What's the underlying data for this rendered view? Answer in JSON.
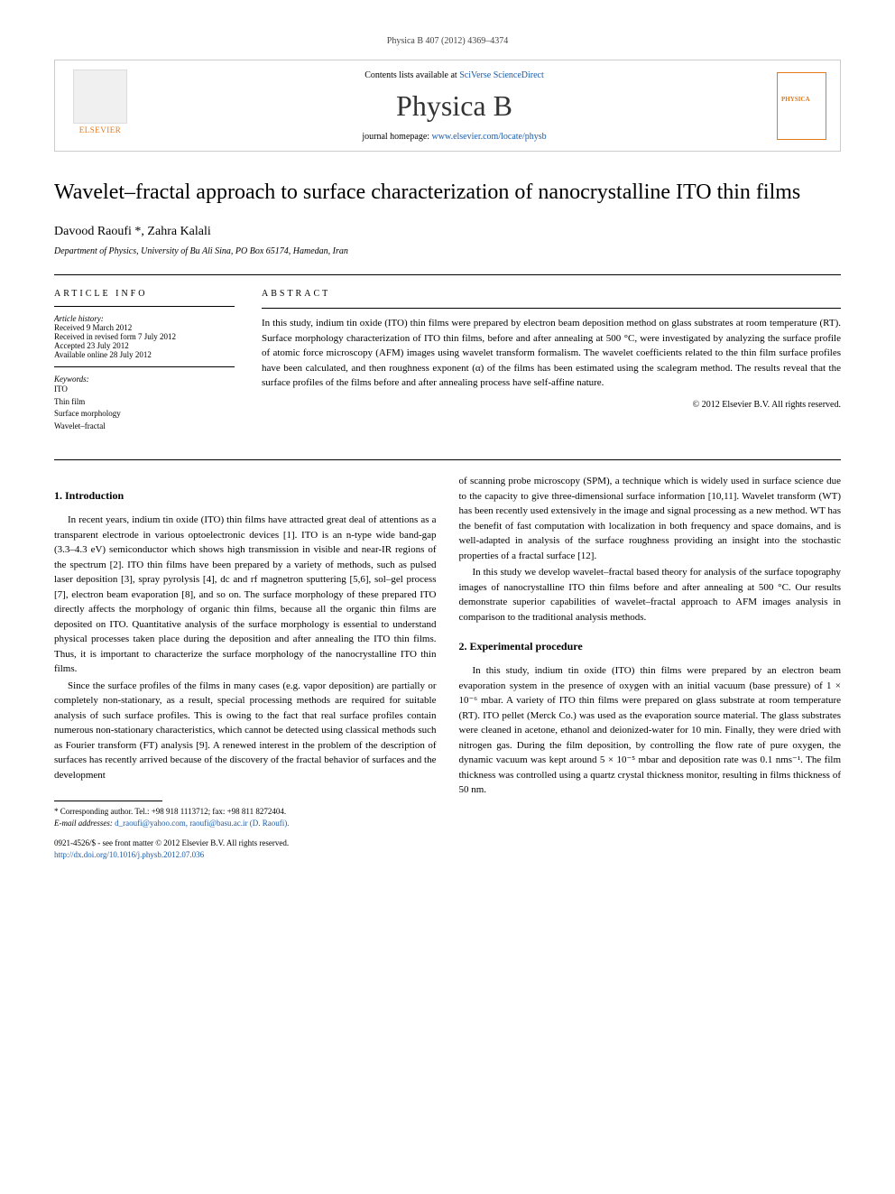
{
  "header": {
    "running_head": "Physica B 407 (2012) 4369–4374",
    "contents_prefix": "Contents lists available at ",
    "contents_link": "SciVerse ScienceDirect",
    "journal": "Physica B",
    "homepage_prefix": "journal homepage: ",
    "homepage_url": "www.elsevier.com/locate/physb",
    "publisher": "ELSEVIER"
  },
  "article": {
    "title": "Wavelet–fractal approach to surface characterization of nanocrystalline ITO thin films",
    "authors": "Davood Raoufi *, Zahra Kalali",
    "affiliation": "Department of Physics, University of Bu Ali Sina, PO Box 65174, Hamedan, Iran"
  },
  "info": {
    "heading": "article info",
    "history_label": "Article history:",
    "received": "Received 9 March 2012",
    "revised": "Received in revised form 7 July 2012",
    "accepted": "Accepted 23 July 2012",
    "online": "Available online 28 July 2012",
    "keywords_label": "Keywords:",
    "keywords": [
      "ITO",
      "Thin film",
      "Surface morphology",
      "Wavelet–fractal"
    ]
  },
  "abstract": {
    "heading": "abstract",
    "text": "In this study, indium tin oxide (ITO) thin films were prepared by electron beam deposition method on glass substrates at room temperature (RT). Surface morphology characterization of ITO thin films, before and after annealing at 500 °C, were investigated by analyzing the surface profile of atomic force microscopy (AFM) images using wavelet transform formalism. The wavelet coefficients related to the thin film surface profiles have been calculated, and then roughness exponent (α) of the films has been estimated using the scalegram method. The results reveal that the surface profiles of the films before and after annealing process have self-affine nature.",
    "copyright": "© 2012 Elsevier B.V. All rights reserved."
  },
  "sections": {
    "intro_heading": "1. Introduction",
    "intro_p1": "In recent years, indium tin oxide (ITO) thin films have attracted great deal of attentions as a transparent electrode in various optoelectronic devices [1]. ITO is an n-type wide band-gap (3.3–4.3 eV) semiconductor which shows high transmission in visible and near-IR regions of the spectrum [2]. ITO thin films have been prepared by a variety of methods, such as pulsed laser deposition [3], spray pyrolysis [4], dc and rf magnetron sputtering [5,6], sol–gel process [7], electron beam evaporation [8], and so on. The surface morphology of these prepared ITO directly affects the morphology of organic thin films, because all the organic thin films are deposited on ITO. Quantitative analysis of the surface morphology is essential to understand physical processes taken place during the deposition and after annealing the ITO thin films. Thus, it is important to characterize the surface morphology of the nanocrystalline ITO thin films.",
    "intro_p2": "Since the surface profiles of the films in many cases (e.g. vapor deposition) are partially or completely non-stationary, as a result, special processing methods are required for suitable analysis of such surface profiles. This is owing to the fact that real surface profiles contain numerous non-stationary characteristics, which cannot be detected using classical methods such as Fourier transform (FT) analysis [9]. A renewed interest in the problem of the description of surfaces has recently arrived because of the discovery of the fractal behavior of surfaces and the development",
    "intro_p3": "of scanning probe microscopy (SPM), a technique which is widely used in surface science due to the capacity to give three-dimensional surface information [10,11]. Wavelet transform (WT) has been recently used extensively in the image and signal processing as a new method. WT has the benefit of fast computation with localization in both frequency and space domains, and is well-adapted in analysis of the surface roughness providing an insight into the stochastic properties of a fractal surface [12].",
    "intro_p4": "In this study we develop wavelet–fractal based theory for analysis of the surface topography images of nanocrystalline ITO thin films before and after annealing at 500 °C. Our results demonstrate superior capabilities of wavelet–fractal approach to AFM images analysis in comparison to the traditional analysis methods.",
    "exp_heading": "2. Experimental procedure",
    "exp_p1": "In this study, indium tin oxide (ITO) thin films were prepared by an electron beam evaporation system in the presence of oxygen with an initial vacuum (base pressure) of 1 × 10⁻⁶ mbar. A variety of ITO thin films were prepared on glass substrate at room temperature (RT). ITO pellet (Merck Co.) was used as the evaporation source material. The glass substrates were cleaned in acetone, ethanol and deionized-water for 10 min. Finally, they were dried with nitrogen gas. During the film deposition, by controlling the flow rate of pure oxygen, the dynamic vacuum was kept around 5 × 10⁻⁵ mbar and deposition rate was 0.1 nms⁻¹. The film thickness was controlled using a quartz crystal thickness monitor, resulting in films thickness of 50 nm."
  },
  "footnote": {
    "corresponding": "* Corresponding author. Tel.: +98 918 1113712; fax: +98 811 8272404.",
    "email_label": "E-mail addresses:",
    "emails": "d_raoufi@yahoo.com, raoufi@basu.ac.ir (D. Raoufi).",
    "issn": "0921-4526/$ - see front matter © 2012 Elsevier B.V. All rights reserved.",
    "doi": "http://dx.doi.org/10.1016/j.physb.2012.07.036"
  },
  "colors": {
    "link": "#1a5ba8",
    "elsevier_orange": "#e67817",
    "text": "#000000",
    "background": "#ffffff"
  },
  "typography": {
    "title_fontsize": 24,
    "body_fontsize": 11,
    "journal_fontsize": 32,
    "footnote_fontsize": 9
  }
}
